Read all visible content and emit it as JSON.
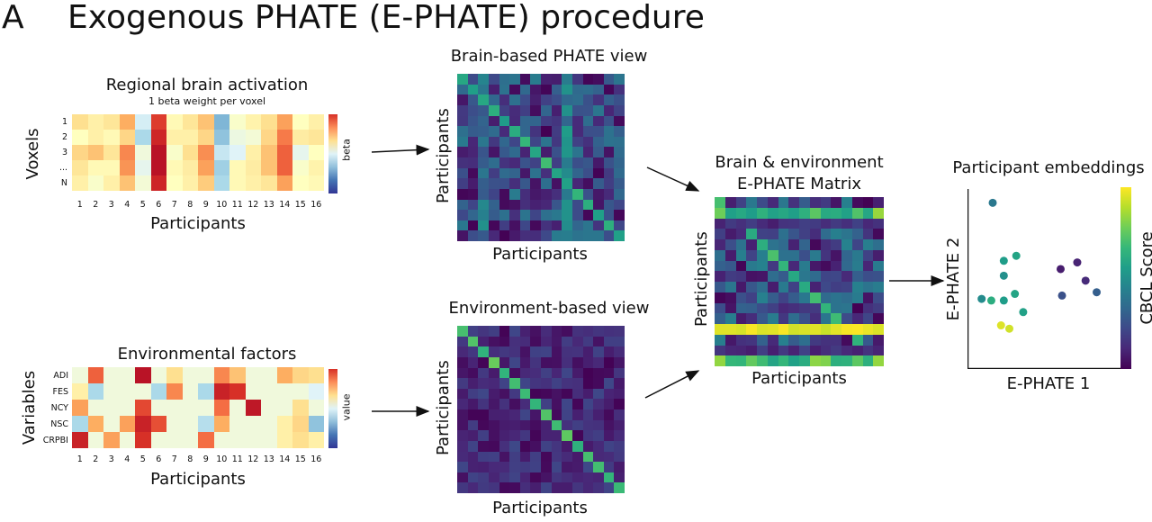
{
  "panel": {
    "letter": "A",
    "title": "Exogenous PHATE (E-PHATE) procedure"
  },
  "brain_heatmap": {
    "title": "Regional brain activation",
    "subtitle": "1 beta weight per voxel",
    "ylabel": "Voxels",
    "xlabel": "Participants",
    "row_labels": [
      "1",
      "2",
      "3",
      "...",
      "N"
    ],
    "col_labels": [
      "1",
      "2",
      "3",
      "4",
      "5",
      "6",
      "7",
      "8",
      "9",
      "10",
      "11",
      "12",
      "13",
      "14",
      "15",
      "16"
    ],
    "colorbar_label": "beta",
    "values": [
      [
        0.6,
        0.55,
        0.58,
        0.7,
        0.38,
        0.88,
        0.52,
        0.58,
        0.66,
        0.22,
        0.48,
        0.54,
        0.6,
        0.72,
        0.5,
        0.55
      ],
      [
        0.5,
        0.55,
        0.52,
        0.62,
        0.3,
        0.92,
        0.55,
        0.55,
        0.62,
        0.25,
        0.44,
        0.46,
        0.62,
        0.78,
        0.56,
        0.58
      ],
      [
        0.62,
        0.66,
        0.58,
        0.76,
        0.45,
        0.96,
        0.48,
        0.6,
        0.75,
        0.35,
        0.4,
        0.55,
        0.66,
        0.82,
        0.42,
        0.5
      ],
      [
        0.58,
        0.52,
        0.52,
        0.74,
        0.42,
        0.96,
        0.52,
        0.56,
        0.72,
        0.28,
        0.52,
        0.56,
        0.66,
        0.82,
        0.48,
        0.54
      ],
      [
        0.55,
        0.48,
        0.55,
        0.66,
        0.46,
        0.92,
        0.5,
        0.55,
        0.64,
        0.3,
        0.52,
        0.55,
        0.58,
        0.72,
        0.5,
        0.52
      ]
    ]
  },
  "env_heatmap": {
    "title": "Environmental factors",
    "ylabel": "Variables",
    "xlabel": "Participants",
    "row_labels": [
      "ADI",
      "FES",
      "NCY",
      "NSC",
      "CRPBI"
    ],
    "col_labels": [
      "1",
      "2",
      "3",
      "4",
      "5",
      "6",
      "7",
      "8",
      "9",
      "10",
      "11",
      "12",
      "13",
      "14",
      "15",
      "16"
    ],
    "colorbar_label": "value",
    "values": [
      [
        0.45,
        0.82,
        0.45,
        0.45,
        0.96,
        0.45,
        0.6,
        0.45,
        0.45,
        0.76,
        0.66,
        0.45,
        0.45,
        0.7,
        0.62,
        0.6
      ],
      [
        0.55,
        0.3,
        0.45,
        0.45,
        0.45,
        0.3,
        0.76,
        0.45,
        0.3,
        0.93,
        0.9,
        0.45,
        0.45,
        0.45,
        0.45,
        0.4
      ],
      [
        0.72,
        0.45,
        0.45,
        0.45,
        0.86,
        0.45,
        0.45,
        0.45,
        0.45,
        0.8,
        0.45,
        0.95,
        0.45,
        0.45,
        0.6,
        0.45
      ],
      [
        0.3,
        0.7,
        0.45,
        0.72,
        0.93,
        0.85,
        0.45,
        0.45,
        0.32,
        0.7,
        0.45,
        0.45,
        0.45,
        0.55,
        0.62,
        0.25
      ],
      [
        0.93,
        0.45,
        0.72,
        0.45,
        0.9,
        0.45,
        0.45,
        0.45,
        0.8,
        0.45,
        0.45,
        0.45,
        0.45,
        0.55,
        0.6,
        0.55
      ]
    ]
  },
  "brain_matrix": {
    "title": "Brain-based PHATE view",
    "xlabel": "Participants",
    "ylabel": "Participants"
  },
  "env_matrix": {
    "title": "Environment-based view",
    "xlabel": "Participants",
    "ylabel": "Participants"
  },
  "ephate_matrix": {
    "title_line1": "Brain & environment",
    "title_line2": "E-PHATE Matrix",
    "xlabel": "Participants",
    "ylabel": "Participants"
  },
  "chart_data": {
    "type": "scatter",
    "title": "Participant embeddings",
    "xlabel": "E-PHATE 1",
    "ylabel": "E-PHATE 2",
    "colorbar_label": "CBCL Score",
    "grid": false,
    "xlim": [
      0,
      10
    ],
    "ylim": [
      0,
      10
    ],
    "points": [
      {
        "x": 1.3,
        "y": 9.6,
        "c": 0.4
      },
      {
        "x": 3.0,
        "y": 6.4,
        "c": 0.58
      },
      {
        "x": 2.1,
        "y": 6.1,
        "c": 0.55
      },
      {
        "x": 2.1,
        "y": 5.2,
        "c": 0.5
      },
      {
        "x": 0.5,
        "y": 3.8,
        "c": 0.48
      },
      {
        "x": 1.2,
        "y": 3.7,
        "c": 0.62
      },
      {
        "x": 2.1,
        "y": 3.7,
        "c": 0.55
      },
      {
        "x": 2.9,
        "y": 4.1,
        "c": 0.58
      },
      {
        "x": 3.5,
        "y": 3.0,
        "c": 0.57
      },
      {
        "x": 1.9,
        "y": 2.2,
        "c": 0.95
      },
      {
        "x": 2.5,
        "y": 2.0,
        "c": 0.93
      },
      {
        "x": 6.2,
        "y": 5.6,
        "c": 0.08
      },
      {
        "x": 7.4,
        "y": 6.0,
        "c": 0.1
      },
      {
        "x": 8.0,
        "y": 4.9,
        "c": 0.12
      },
      {
        "x": 6.3,
        "y": 4.0,
        "c": 0.25
      },
      {
        "x": 8.8,
        "y": 4.2,
        "c": 0.3
      }
    ]
  }
}
